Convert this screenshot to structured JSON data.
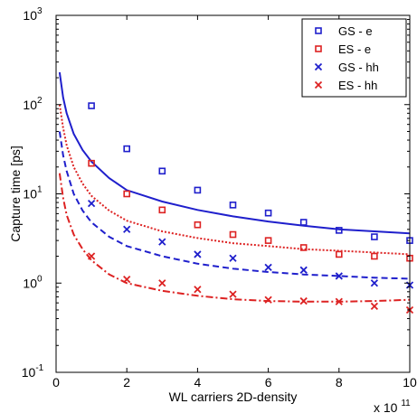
{
  "chart_data": {
    "type": "scatter",
    "title": "",
    "xlabel": "WL carriers 2D-density",
    "ylabel": "Capture time [ps]",
    "x_multiplier_label": {
      "base": "x 10",
      "exp": "11"
    },
    "xlim": [
      0,
      10
    ],
    "ylim": [
      0.1,
      1000
    ],
    "y_scale": "log",
    "grid": false,
    "legend_position": "top-right",
    "x_ticks": [
      {
        "value": 0,
        "label": "0"
      },
      {
        "value": 2,
        "label": "2"
      },
      {
        "value": 4,
        "label": "4"
      },
      {
        "value": 6,
        "label": "6"
      },
      {
        "value": 8,
        "label": "8"
      },
      {
        "value": 10,
        "label": "10"
      }
    ],
    "y_ticks": [
      {
        "value": 0.1,
        "base": "10",
        "exp": "-1"
      },
      {
        "value": 1,
        "base": "10",
        "exp": "0"
      },
      {
        "value": 10,
        "base": "10",
        "exp": "1"
      },
      {
        "value": 100,
        "base": "10",
        "exp": "2"
      },
      {
        "value": 1000,
        "base": "10",
        "exp": "3"
      }
    ],
    "series": [
      {
        "name": "GS - e",
        "color": "#1f1fcc",
        "marker": "square",
        "x": [
          1,
          2,
          3,
          4,
          5,
          6,
          7,
          8,
          9,
          10
        ],
        "y": [
          97,
          32,
          18,
          11,
          7.5,
          6.1,
          4.8,
          3.9,
          3.3,
          3.0
        ]
      },
      {
        "name": "ES - e",
        "color": "#dd2222",
        "marker": "square",
        "x": [
          1,
          2,
          3,
          4,
          5,
          6,
          7,
          8,
          9,
          10
        ],
        "y": [
          22,
          10,
          6.6,
          4.5,
          3.5,
          3.0,
          2.5,
          2.1,
          2.0,
          1.9
        ]
      },
      {
        "name": "GS - hh",
        "color": "#1f1fcc",
        "marker": "x",
        "x": [
          1,
          2,
          3,
          4,
          5,
          6,
          7,
          8,
          9,
          10
        ],
        "y": [
          7.8,
          4.0,
          2.9,
          2.1,
          1.9,
          1.5,
          1.4,
          1.2,
          1.0,
          0.95
        ]
      },
      {
        "name": "ES - hh",
        "color": "#dd2222",
        "marker": "x",
        "x": [
          1,
          2,
          3,
          4,
          5,
          6,
          7,
          8,
          9,
          10
        ],
        "y": [
          2.0,
          1.1,
          1.0,
          0.85,
          0.75,
          0.65,
          0.63,
          0.62,
          0.55,
          0.5
        ]
      }
    ],
    "curves": [
      {
        "color": "#1f1fcc",
        "dash": "solid",
        "x": [
          0.1,
          0.2,
          0.3,
          0.5,
          0.75,
          1,
          1.5,
          2,
          3,
          4,
          5,
          6,
          7,
          8,
          9,
          10
        ],
        "y": [
          230,
          120,
          80,
          47,
          31,
          23,
          15,
          11,
          8.2,
          6.6,
          5.6,
          4.9,
          4.4,
          4.0,
          3.8,
          3.6
        ]
      },
      {
        "color": "#dd2222",
        "dash": "dotted",
        "x": [
          0.1,
          0.2,
          0.3,
          0.5,
          0.75,
          1,
          1.5,
          2,
          3,
          4,
          5,
          6,
          7,
          8,
          9,
          10
        ],
        "y": [
          100,
          55,
          35,
          20,
          13,
          9.5,
          6.5,
          5.0,
          3.8,
          3.2,
          2.8,
          2.6,
          2.4,
          2.3,
          2.2,
          2.1
        ]
      },
      {
        "color": "#1f1fcc",
        "dash": "dashed",
        "x": [
          0.1,
          0.2,
          0.3,
          0.5,
          0.75,
          1,
          1.5,
          2,
          3,
          4,
          5,
          6,
          7,
          8,
          9,
          10
        ],
        "y": [
          50,
          27,
          18,
          10,
          6.5,
          4.8,
          3.3,
          2.6,
          2.0,
          1.65,
          1.45,
          1.33,
          1.25,
          1.2,
          1.15,
          1.12
        ]
      },
      {
        "color": "#dd2222",
        "dash": "dashdot",
        "x": [
          0.1,
          0.2,
          0.3,
          0.5,
          0.75,
          1,
          1.5,
          2,
          3,
          4,
          5,
          6,
          7,
          8,
          9,
          10
        ],
        "y": [
          17,
          9,
          5.8,
          3.5,
          2.4,
          1.8,
          1.25,
          1.0,
          0.82,
          0.72,
          0.66,
          0.63,
          0.62,
          0.62,
          0.63,
          0.65
        ]
      }
    ]
  }
}
